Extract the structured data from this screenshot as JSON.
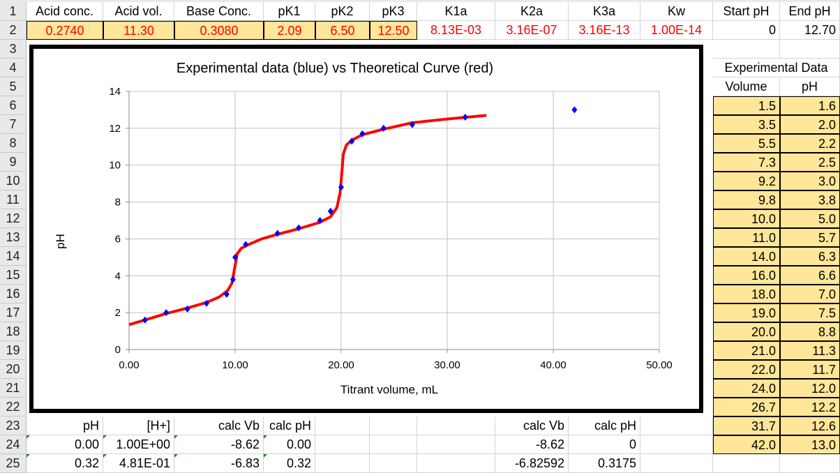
{
  "sheet": {
    "row1": [
      "Acid conc.",
      "Acid vol.",
      "Base Conc.",
      "pK1",
      "pK2",
      "pK3",
      "K1a",
      "K2a",
      "K3a",
      "Kw",
      "Start pH",
      "End pH"
    ],
    "row2": [
      "0.2740",
      "11.30",
      "0.3080",
      "2.09",
      "6.50",
      "12.50",
      "8.13E-03",
      "3.16E-07",
      "3.16E-13",
      "1.00E-14",
      "0",
      "12.70"
    ],
    "exp_title": "Experimental Data",
    "exp_headers": [
      "Volume",
      "pH"
    ],
    "exp_rows": [
      [
        "1.5",
        "1.6"
      ],
      [
        "3.5",
        "2.0"
      ],
      [
        "5.5",
        "2.2"
      ],
      [
        "7.3",
        "2.5"
      ],
      [
        "9.2",
        "3.0"
      ],
      [
        "9.8",
        "3.8"
      ],
      [
        "10.0",
        "5.0"
      ],
      [
        "11.0",
        "5.7"
      ],
      [
        "14.0",
        "6.3"
      ],
      [
        "16.0",
        "6.6"
      ],
      [
        "18.0",
        "7.0"
      ],
      [
        "19.0",
        "7.5"
      ],
      [
        "20.0",
        "8.8"
      ],
      [
        "21.0",
        "11.3"
      ],
      [
        "22.0",
        "11.7"
      ],
      [
        "24.0",
        "12.0"
      ],
      [
        "26.7",
        "12.2"
      ],
      [
        "31.7",
        "12.6"
      ],
      [
        "42.0",
        "13.0"
      ]
    ],
    "calc_headers": {
      "A": "pH",
      "B": "[H+]",
      "C": "calc Vb",
      "D": "calc pH",
      "H": "calc Vb",
      "I": "calc pH"
    },
    "calc_rows": [
      {
        "A": "0.00",
        "B": "1.00E+00",
        "C": "-8.62",
        "D": "0.00",
        "H": "-8.62",
        "I": "0"
      },
      {
        "A": "0.32",
        "B": "4.81E-01",
        "C": "-6.83",
        "D": "0.32",
        "H": "-6.82592",
        "I": "0.3175"
      }
    ]
  },
  "chart_data": {
    "type": "scatter",
    "title": "Experimental data (blue) vs Theoretical Curve (red)",
    "xlabel": "Titrant volume, mL",
    "ylabel": "pH",
    "xlim": [
      0,
      50
    ],
    "ylim": [
      0,
      14
    ],
    "xticks": [
      "0.00",
      "10.00",
      "20.00",
      "30.00",
      "40.00",
      "50.00"
    ],
    "yticks": [
      "0",
      "2",
      "4",
      "6",
      "8",
      "10",
      "12",
      "14"
    ],
    "grid": true,
    "series": [
      {
        "name": "Experimental",
        "color": "#0000ff",
        "x": [
          1.5,
          3.5,
          5.5,
          7.3,
          9.2,
          9.8,
          10.0,
          11.0,
          14.0,
          16.0,
          18.0,
          19.0,
          20.0,
          21.0,
          22.0,
          24.0,
          26.7,
          31.7,
          42.0
        ],
        "y": [
          1.6,
          2.0,
          2.2,
          2.5,
          3.0,
          3.8,
          5.0,
          5.7,
          6.3,
          6.6,
          7.0,
          7.5,
          8.8,
          11.3,
          11.7,
          12.0,
          12.2,
          12.6,
          13.0
        ]
      },
      {
        "name": "Theoretical",
        "color": "#ff0000",
        "x": [
          0,
          1.5,
          3.5,
          5.5,
          7.3,
          8.5,
          9.3,
          9.7,
          9.95,
          10.2,
          10.6,
          11.3,
          12.5,
          14,
          16,
          18,
          19,
          19.6,
          19.9,
          20.05,
          20.2,
          20.5,
          21,
          22,
          24,
          26.7,
          30,
          33.7
        ],
        "y": [
          1.35,
          1.6,
          1.95,
          2.25,
          2.55,
          2.85,
          3.2,
          3.6,
          4.4,
          5.2,
          5.5,
          5.7,
          6.0,
          6.25,
          6.55,
          6.9,
          7.2,
          7.7,
          8.5,
          9.5,
          10.6,
          11.1,
          11.35,
          11.65,
          11.95,
          12.3,
          12.5,
          12.7
        ]
      }
    ]
  }
}
